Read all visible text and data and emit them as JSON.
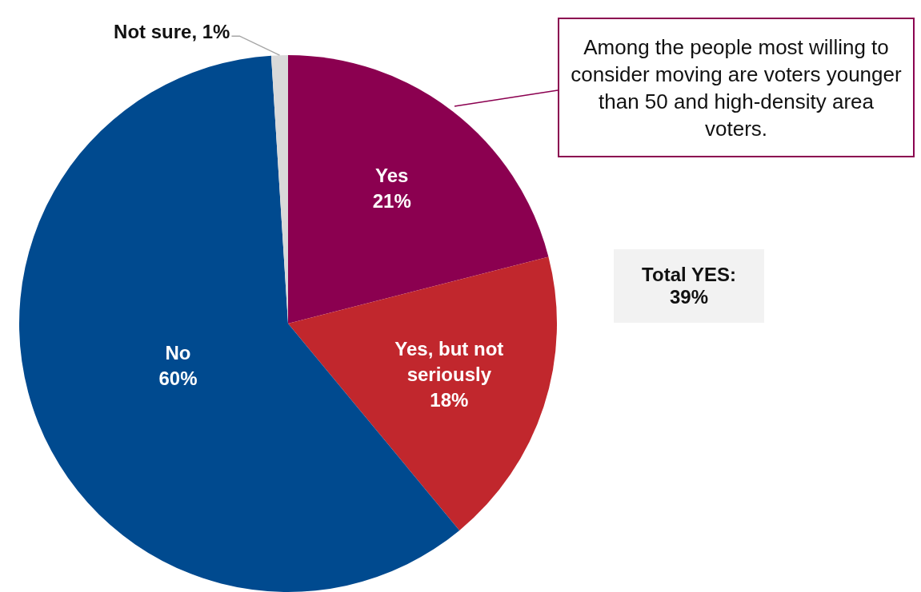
{
  "chart_data": {
    "type": "pie",
    "categories": [
      "Yes",
      "Yes, but not seriously",
      "No",
      "Not sure"
    ],
    "values": [
      21,
      18,
      60,
      1
    ],
    "colors": [
      "#8b0050",
      "#c1272d",
      "#004a8f",
      "#d9d9d9"
    ],
    "value_labels": [
      "21%",
      "18%",
      "60%",
      "1%"
    ],
    "legend": false,
    "annotations": [
      "Among the people most willing to consider moving are voters younger than 50 and high-density area voters.",
      "Total YES: 39%"
    ]
  }
}
